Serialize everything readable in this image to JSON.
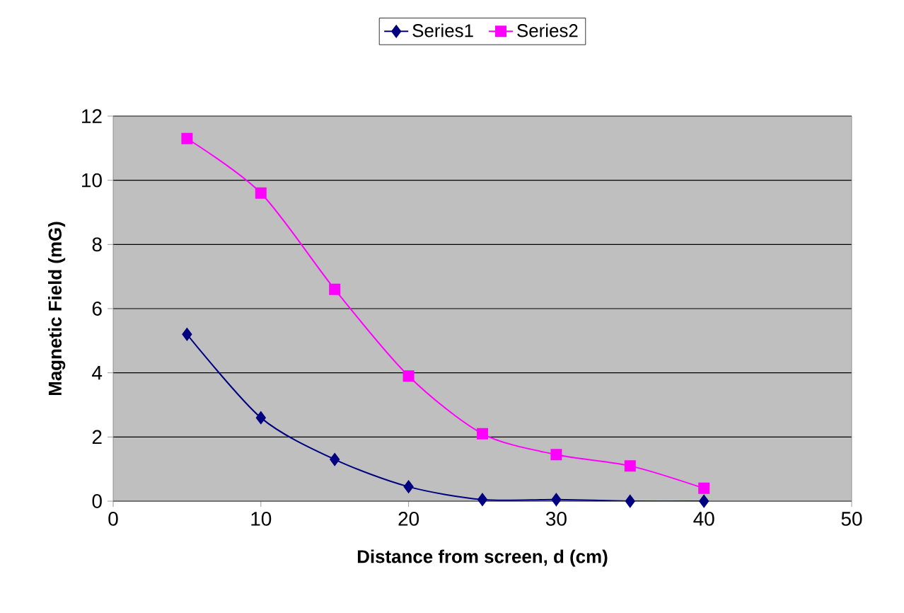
{
  "chart_data": {
    "type": "line",
    "xlabel": "Distance from screen, d (cm)",
    "ylabel": "Magnetic Field (mG)",
    "x": [
      5,
      10,
      15,
      20,
      25,
      30,
      35,
      40
    ],
    "series": [
      {
        "name": "Series1",
        "color": "#000080",
        "marker": "diamond",
        "values": [
          5.2,
          2.6,
          1.3,
          0.45,
          0.05,
          0.05,
          0,
          0
        ]
      },
      {
        "name": "Series2",
        "color": "#ff00ff",
        "marker": "square",
        "values": [
          11.3,
          9.6,
          6.6,
          3.9,
          2.1,
          1.45,
          1.1,
          0.4
        ]
      }
    ],
    "xlim": [
      0,
      50
    ],
    "ylim": [
      0,
      12
    ],
    "xticks": [
      0,
      10,
      20,
      30,
      40,
      50
    ],
    "yticks": [
      0,
      2,
      4,
      6,
      8,
      10,
      12
    ],
    "grid": "y",
    "legend": "top"
  }
}
